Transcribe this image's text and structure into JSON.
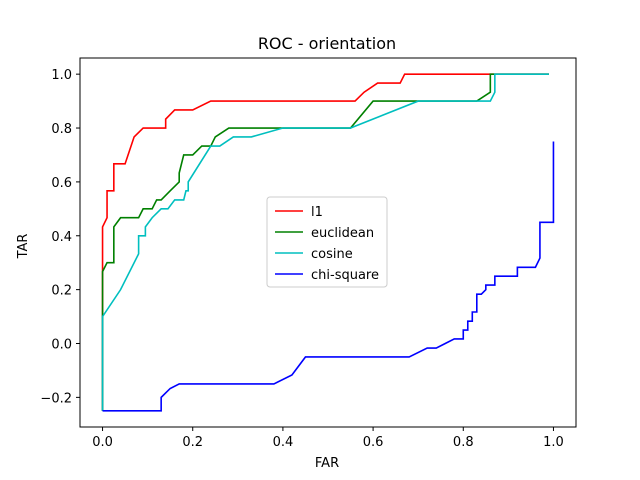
{
  "chart_data": {
    "type": "line",
    "title": "ROC - orientation",
    "xlabel": "FAR",
    "ylabel": "TAR",
    "xlim": [
      -0.05,
      1.05
    ],
    "ylim": [
      -0.31,
      1.06
    ],
    "xticks": [
      0.0,
      0.2,
      0.4,
      0.6,
      0.8,
      1.0
    ],
    "xtick_labels": [
      "0.0",
      "0.2",
      "0.4",
      "0.6",
      "0.8",
      "1.0"
    ],
    "yticks": [
      -0.2,
      0.0,
      0.2,
      0.4,
      0.6,
      0.8,
      1.0
    ],
    "ytick_labels": [
      "−0.2",
      "0.0",
      "0.2",
      "0.4",
      "0.6",
      "0.8",
      "1.0"
    ],
    "grid": false,
    "legend_position": "center",
    "series": [
      {
        "name": "l1",
        "color": "#ff0000",
        "x": [
          0.0,
          0.0,
          0.01,
          0.01,
          0.02,
          0.025,
          0.025,
          0.05,
          0.07,
          0.09,
          0.14,
          0.14,
          0.16,
          0.2,
          0.24,
          0.56,
          0.58,
          0.61,
          0.64,
          0.66,
          0.67,
          0.99
        ],
        "y": [
          -0.25,
          0.433,
          0.467,
          0.567,
          0.567,
          0.567,
          0.667,
          0.667,
          0.767,
          0.8,
          0.8,
          0.833,
          0.867,
          0.867,
          0.9,
          0.9,
          0.933,
          0.967,
          0.967,
          0.967,
          1.0,
          1.0
        ]
      },
      {
        "name": "euclidean",
        "color": "#008000",
        "x": [
          0.0,
          0.0,
          0.01,
          0.025,
          0.025,
          0.04,
          0.08,
          0.09,
          0.11,
          0.12,
          0.13,
          0.15,
          0.17,
          0.17,
          0.18,
          0.2,
          0.22,
          0.24,
          0.25,
          0.28,
          0.54,
          0.55,
          0.6,
          0.7,
          0.83,
          0.86,
          0.86,
          0.99
        ],
        "y": [
          -0.25,
          0.267,
          0.3,
          0.3,
          0.433,
          0.467,
          0.467,
          0.5,
          0.5,
          0.533,
          0.533,
          0.567,
          0.6,
          0.633,
          0.7,
          0.7,
          0.733,
          0.733,
          0.767,
          0.8,
          0.8,
          0.8,
          0.9,
          0.9,
          0.9,
          0.933,
          1.0,
          1.0
        ]
      },
      {
        "name": "cosine",
        "color": "#00bfbf",
        "x": [
          0.0,
          0.0,
          0.04,
          0.08,
          0.08,
          0.095,
          0.095,
          0.11,
          0.13,
          0.145,
          0.16,
          0.18,
          0.185,
          0.19,
          0.19,
          0.24,
          0.26,
          0.29,
          0.33,
          0.4,
          0.55,
          0.7,
          0.85,
          0.86,
          0.87,
          0.87,
          0.99
        ],
        "y": [
          -0.25,
          0.1,
          0.2,
          0.333,
          0.4,
          0.4,
          0.433,
          0.467,
          0.5,
          0.5,
          0.533,
          0.533,
          0.567,
          0.567,
          0.6,
          0.733,
          0.733,
          0.767,
          0.767,
          0.8,
          0.8,
          0.9,
          0.9,
          0.9,
          0.933,
          1.0,
          1.0
        ]
      },
      {
        "name": "chi-square",
        "color": "#0000ff",
        "x": [
          0.0,
          0.13,
          0.13,
          0.15,
          0.17,
          0.17,
          0.38,
          0.42,
          0.45,
          0.68,
          0.72,
          0.74,
          0.76,
          0.78,
          0.8,
          0.8,
          0.81,
          0.81,
          0.82,
          0.82,
          0.83,
          0.83,
          0.84,
          0.85,
          0.85,
          0.86,
          0.87,
          0.87,
          0.9,
          0.9,
          0.92,
          0.92,
          0.96,
          0.97,
          0.97,
          1.0,
          1.0
        ],
        "y": [
          -0.25,
          -0.25,
          -0.2,
          -0.167,
          -0.15,
          -0.15,
          -0.15,
          -0.117,
          -0.05,
          -0.05,
          -0.017,
          -0.017,
          0.0,
          0.017,
          0.017,
          0.05,
          0.05,
          0.083,
          0.083,
          0.117,
          0.117,
          0.183,
          0.183,
          0.2,
          0.217,
          0.217,
          0.217,
          0.25,
          0.25,
          0.25,
          0.25,
          0.283,
          0.283,
          0.317,
          0.45,
          0.45,
          0.75
        ]
      }
    ]
  }
}
